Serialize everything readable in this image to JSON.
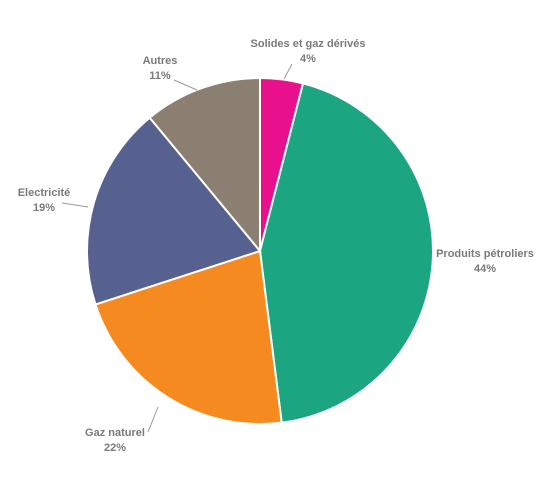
{
  "chart_data": {
    "type": "pie",
    "title": "",
    "unit": "%",
    "start_angle_deg": 0,
    "direction": "clockwise",
    "legend": "none",
    "slices": [
      {
        "label": "Solides et gaz dérivés",
        "value": 4,
        "color": "#e8108c"
      },
      {
        "label": "Produits pétroliers",
        "value": 44,
        "color": "#1ba581"
      },
      {
        "label": "Gaz naturel",
        "value": 22,
        "color": "#f58a20"
      },
      {
        "label": "Electricité",
        "value": 19,
        "color": "#566190"
      },
      {
        "label": "Autres",
        "value": 11,
        "color": "#8a7f70"
      }
    ]
  }
}
